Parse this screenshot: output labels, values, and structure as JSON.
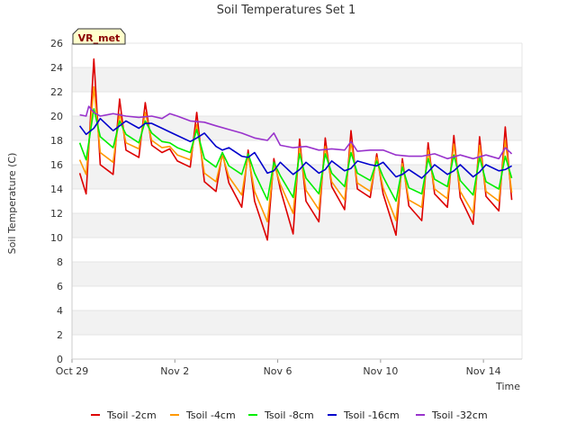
{
  "chart_data": {
    "type": "line",
    "title": "Soil Temperatures Set 1",
    "xlabel": "Time",
    "ylabel": "Soil Temperature (C)",
    "badge": "VR_met",
    "ylim": [
      0,
      26
    ],
    "yticks": [
      0,
      2,
      4,
      6,
      8,
      10,
      12,
      14,
      16,
      18,
      20,
      22,
      24,
      26
    ],
    "xlim": [
      0,
      17.5
    ],
    "xticks": [
      {
        "x": 0,
        "label": "Oct 29"
      },
      {
        "x": 4,
        "label": "Nov 2"
      },
      {
        "x": 8,
        "label": "Nov 6"
      },
      {
        "x": 12,
        "label": "Nov 10"
      },
      {
        "x": 16,
        "label": "Nov 14"
      }
    ],
    "grid": true,
    "legend": "bottom",
    "series": [
      {
        "name": "Tsoil -2cm",
        "color": "#dd0000",
        "points": [
          [
            0.3,
            15.3
          ],
          [
            0.55,
            13.6
          ],
          [
            0.85,
            24.7
          ],
          [
            1.1,
            16.0
          ],
          [
            1.6,
            15.2
          ],
          [
            1.85,
            21.4
          ],
          [
            2.1,
            17.2
          ],
          [
            2.6,
            16.6
          ],
          [
            2.85,
            21.1
          ],
          [
            3.1,
            17.6
          ],
          [
            3.5,
            17.0
          ],
          [
            3.8,
            17.3
          ],
          [
            4.1,
            16.3
          ],
          [
            4.6,
            15.8
          ],
          [
            4.85,
            20.3
          ],
          [
            5.15,
            14.6
          ],
          [
            5.6,
            13.8
          ],
          [
            5.85,
            17.0
          ],
          [
            6.1,
            14.5
          ],
          [
            6.6,
            12.5
          ],
          [
            6.85,
            17.2
          ],
          [
            7.1,
            13.0
          ],
          [
            7.6,
            9.8
          ],
          [
            7.85,
            16.5
          ],
          [
            8.1,
            14.0
          ],
          [
            8.6,
            10.3
          ],
          [
            8.85,
            18.1
          ],
          [
            9.1,
            13.0
          ],
          [
            9.6,
            11.3
          ],
          [
            9.85,
            18.2
          ],
          [
            10.1,
            14.2
          ],
          [
            10.6,
            12.3
          ],
          [
            10.85,
            18.8
          ],
          [
            11.1,
            14.0
          ],
          [
            11.6,
            13.3
          ],
          [
            11.85,
            16.9
          ],
          [
            12.1,
            13.6
          ],
          [
            12.6,
            10.2
          ],
          [
            12.85,
            16.5
          ],
          [
            13.1,
            12.6
          ],
          [
            13.6,
            11.4
          ],
          [
            13.85,
            17.8
          ],
          [
            14.1,
            13.6
          ],
          [
            14.6,
            12.5
          ],
          [
            14.85,
            18.4
          ],
          [
            15.1,
            13.3
          ],
          [
            15.6,
            11.1
          ],
          [
            15.85,
            18.3
          ],
          [
            16.1,
            13.4
          ],
          [
            16.6,
            12.2
          ],
          [
            16.85,
            19.1
          ],
          [
            17.1,
            13.1
          ]
        ]
      },
      {
        "name": "Tsoil -4cm",
        "color": "#ff9900",
        "points": [
          [
            0.3,
            16.4
          ],
          [
            0.55,
            15.2
          ],
          [
            0.85,
            22.4
          ],
          [
            1.1,
            17.0
          ],
          [
            1.6,
            16.2
          ],
          [
            1.85,
            20.2
          ],
          [
            2.1,
            17.8
          ],
          [
            2.6,
            17.3
          ],
          [
            2.85,
            20.3
          ],
          [
            3.1,
            18.0
          ],
          [
            3.5,
            17.4
          ],
          [
            3.8,
            17.5
          ],
          [
            4.1,
            16.8
          ],
          [
            4.6,
            16.4
          ],
          [
            4.85,
            19.3
          ],
          [
            5.15,
            15.3
          ],
          [
            5.6,
            14.6
          ],
          [
            5.85,
            16.8
          ],
          [
            6.1,
            15.0
          ],
          [
            6.6,
            13.5
          ],
          [
            6.85,
            16.8
          ],
          [
            7.1,
            13.8
          ],
          [
            7.6,
            11.3
          ],
          [
            7.85,
            16.1
          ],
          [
            8.1,
            14.4
          ],
          [
            8.6,
            12.0
          ],
          [
            8.85,
            17.4
          ],
          [
            9.1,
            13.9
          ],
          [
            9.6,
            12.3
          ],
          [
            9.85,
            17.5
          ],
          [
            10.1,
            14.6
          ],
          [
            10.6,
            13.1
          ],
          [
            10.85,
            17.9
          ],
          [
            11.1,
            14.5
          ],
          [
            11.6,
            13.8
          ],
          [
            11.85,
            16.6
          ],
          [
            12.1,
            14.1
          ],
          [
            12.6,
            11.4
          ],
          [
            12.85,
            16.1
          ],
          [
            13.1,
            13.1
          ],
          [
            13.6,
            12.5
          ],
          [
            13.85,
            17.2
          ],
          [
            14.1,
            14.0
          ],
          [
            14.6,
            13.2
          ],
          [
            14.85,
            17.7
          ],
          [
            15.1,
            13.8
          ],
          [
            15.6,
            12.0
          ],
          [
            15.85,
            17.6
          ],
          [
            16.1,
            13.8
          ],
          [
            16.6,
            13.0
          ],
          [
            16.85,
            18.0
          ],
          [
            17.1,
            13.7
          ]
        ]
      },
      {
        "name": "Tsoil -8cm",
        "color": "#00ee00",
        "points": [
          [
            0.3,
            17.8
          ],
          [
            0.55,
            16.4
          ],
          [
            0.85,
            20.6
          ],
          [
            1.1,
            18.3
          ],
          [
            1.6,
            17.4
          ],
          [
            1.85,
            19.6
          ],
          [
            2.1,
            18.5
          ],
          [
            2.6,
            17.8
          ],
          [
            2.85,
            19.6
          ],
          [
            3.1,
            18.6
          ],
          [
            3.5,
            17.9
          ],
          [
            3.8,
            17.8
          ],
          [
            4.1,
            17.4
          ],
          [
            4.6,
            17.0
          ],
          [
            4.85,
            18.9
          ],
          [
            5.15,
            16.5
          ],
          [
            5.6,
            15.8
          ],
          [
            5.85,
            17.0
          ],
          [
            6.1,
            15.9
          ],
          [
            6.6,
            15.2
          ],
          [
            6.85,
            16.9
          ],
          [
            7.1,
            15.3
          ],
          [
            7.6,
            13.1
          ],
          [
            7.85,
            16.2
          ],
          [
            8.1,
            15.1
          ],
          [
            8.6,
            13.3
          ],
          [
            8.85,
            16.9
          ],
          [
            9.1,
            14.9
          ],
          [
            9.6,
            13.6
          ],
          [
            9.85,
            16.9
          ],
          [
            10.1,
            15.3
          ],
          [
            10.6,
            14.2
          ],
          [
            10.85,
            17.0
          ],
          [
            11.1,
            15.3
          ],
          [
            11.6,
            14.7
          ],
          [
            11.85,
            16.3
          ],
          [
            12.1,
            15.0
          ],
          [
            12.6,
            13.0
          ],
          [
            12.85,
            15.8
          ],
          [
            13.1,
            14.1
          ],
          [
            13.6,
            13.6
          ],
          [
            13.85,
            16.5
          ],
          [
            14.1,
            14.8
          ],
          [
            14.6,
            14.2
          ],
          [
            14.85,
            16.8
          ],
          [
            15.1,
            14.7
          ],
          [
            15.6,
            13.5
          ],
          [
            15.85,
            16.6
          ],
          [
            16.1,
            14.6
          ],
          [
            16.6,
            14.0
          ],
          [
            16.85,
            16.7
          ],
          [
            17.1,
            14.9
          ]
        ]
      },
      {
        "name": "Tsoil -16cm",
        "color": "#0000cc",
        "points": [
          [
            0.3,
            19.2
          ],
          [
            0.55,
            18.5
          ],
          [
            0.85,
            19.0
          ],
          [
            1.1,
            19.8
          ],
          [
            1.6,
            18.8
          ],
          [
            1.85,
            19.2
          ],
          [
            2.1,
            19.6
          ],
          [
            2.6,
            19.0
          ],
          [
            2.85,
            19.4
          ],
          [
            3.1,
            19.4
          ],
          [
            3.5,
            19.0
          ],
          [
            3.8,
            18.7
          ],
          [
            4.1,
            18.4
          ],
          [
            4.6,
            17.9
          ],
          [
            4.85,
            18.2
          ],
          [
            5.15,
            18.6
          ],
          [
            5.6,
            17.5
          ],
          [
            5.85,
            17.2
          ],
          [
            6.1,
            17.4
          ],
          [
            6.6,
            16.7
          ],
          [
            6.85,
            16.6
          ],
          [
            7.1,
            17.0
          ],
          [
            7.6,
            15.3
          ],
          [
            7.85,
            15.5
          ],
          [
            8.1,
            16.2
          ],
          [
            8.6,
            15.2
          ],
          [
            8.85,
            15.6
          ],
          [
            9.1,
            16.2
          ],
          [
            9.6,
            15.3
          ],
          [
            9.85,
            15.6
          ],
          [
            10.1,
            16.3
          ],
          [
            10.6,
            15.5
          ],
          [
            10.85,
            15.7
          ],
          [
            11.1,
            16.3
          ],
          [
            11.6,
            16.0
          ],
          [
            11.85,
            15.9
          ],
          [
            12.1,
            16.2
          ],
          [
            12.6,
            15.0
          ],
          [
            12.85,
            15.2
          ],
          [
            13.1,
            15.6
          ],
          [
            13.6,
            14.9
          ],
          [
            13.85,
            15.4
          ],
          [
            14.1,
            16.0
          ],
          [
            14.6,
            15.2
          ],
          [
            14.85,
            15.5
          ],
          [
            15.1,
            16.0
          ],
          [
            15.6,
            15.0
          ],
          [
            15.85,
            15.4
          ],
          [
            16.1,
            16.0
          ],
          [
            16.6,
            15.5
          ],
          [
            16.85,
            15.6
          ],
          [
            17.1,
            15.9
          ]
        ]
      },
      {
        "name": "Tsoil -32cm",
        "color": "#9933cc",
        "points": [
          [
            0.3,
            20.1
          ],
          [
            0.55,
            20.0
          ],
          [
            0.65,
            20.8
          ],
          [
            0.85,
            20.3
          ],
          [
            1.1,
            20.0
          ],
          [
            1.6,
            20.2
          ],
          [
            2.1,
            20.0
          ],
          [
            2.6,
            19.9
          ],
          [
            3.1,
            20.0
          ],
          [
            3.5,
            19.8
          ],
          [
            3.8,
            20.2
          ],
          [
            4.1,
            20.0
          ],
          [
            4.6,
            19.6
          ],
          [
            5.15,
            19.5
          ],
          [
            5.6,
            19.2
          ],
          [
            6.1,
            18.9
          ],
          [
            6.6,
            18.6
          ],
          [
            7.1,
            18.2
          ],
          [
            7.6,
            18.0
          ],
          [
            7.85,
            18.6
          ],
          [
            8.1,
            17.6
          ],
          [
            8.6,
            17.4
          ],
          [
            9.1,
            17.5
          ],
          [
            9.6,
            17.2
          ],
          [
            10.1,
            17.3
          ],
          [
            10.6,
            17.2
          ],
          [
            10.85,
            17.9
          ],
          [
            11.1,
            17.1
          ],
          [
            11.6,
            17.2
          ],
          [
            12.1,
            17.2
          ],
          [
            12.6,
            16.8
          ],
          [
            13.1,
            16.7
          ],
          [
            13.6,
            16.7
          ],
          [
            14.1,
            16.9
          ],
          [
            14.6,
            16.5
          ],
          [
            15.1,
            16.8
          ],
          [
            15.6,
            16.5
          ],
          [
            16.1,
            16.8
          ],
          [
            16.6,
            16.5
          ],
          [
            16.85,
            17.4
          ],
          [
            17.1,
            16.9
          ]
        ]
      }
    ]
  }
}
